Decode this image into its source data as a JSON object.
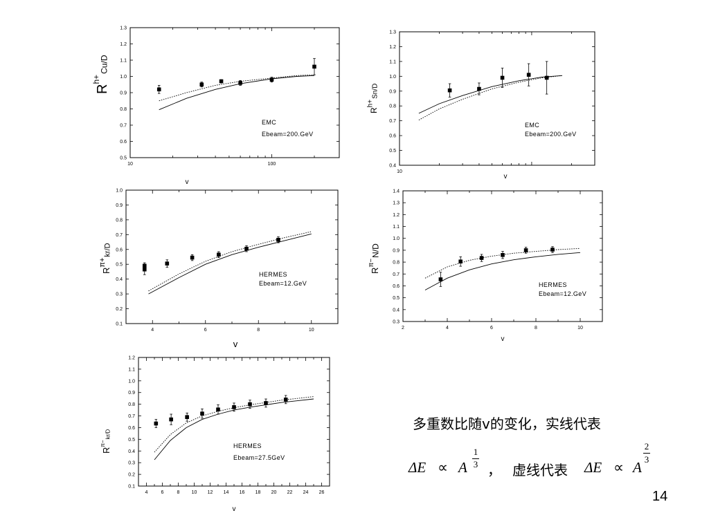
{
  "slide": {
    "caption_line1": "多重数比随v的变化，实线代表",
    "formula1": {
      "lhs": "ΔE",
      "prop": "∝",
      "base": "A",
      "exp_num": "1",
      "exp_den": "3"
    },
    "comma": "，",
    "caption_mid": "虚线代表",
    "formula2": {
      "lhs": "ΔE",
      "prop": "∝",
      "base": "A",
      "exp_num": "2",
      "exp_den": "3"
    },
    "page_number": "14"
  },
  "chart_data": [
    {
      "id": "cu",
      "type": "scatter",
      "ylabel": {
        "main": "R",
        "sup": "h+",
        "sub": "Cu/D"
      },
      "xlabel": "v",
      "xscale": "log",
      "xlim": [
        10,
        300
      ],
      "ylim": [
        0.5,
        1.3
      ],
      "xticks": [
        10,
        100
      ],
      "yticks": [
        0.5,
        0.6,
        0.7,
        0.8,
        0.9,
        1.0,
        1.1,
        1.2,
        1.3
      ],
      "ytick_labels": [
        "0.5",
        "0.6",
        "0.7",
        "0.8",
        "0.9",
        "1.0",
        "1.1",
        "1.2",
        "1.3"
      ],
      "annotation": [
        "EMC",
        "Ebeam=200.GeV"
      ],
      "points": {
        "x": [
          16,
          32,
          44,
          60,
          100,
          200
        ],
        "y": [
          0.92,
          0.95,
          0.97,
          0.96,
          0.98,
          1.06
        ],
        "err": [
          0.025,
          0.015,
          0.01,
          0.015,
          0.015,
          0.05
        ]
      },
      "series": [
        {
          "style": "solid",
          "x": [
            16,
            25,
            40,
            60,
            100,
            150,
            200
          ],
          "y": [
            0.795,
            0.865,
            0.92,
            0.955,
            0.985,
            1.0,
            1.005
          ]
        },
        {
          "style": "dotted",
          "x": [
            16,
            25,
            40,
            60,
            100,
            150,
            200
          ],
          "y": [
            0.85,
            0.9,
            0.945,
            0.97,
            0.99,
            1.005,
            1.01
          ]
        }
      ]
    },
    {
      "id": "sn",
      "type": "scatter",
      "ylabel": {
        "main": "R",
        "sup": "h+",
        "sub": "Sn/D"
      },
      "xlabel": "v",
      "xscale": "log",
      "xlim": [
        10,
        300
      ],
      "ylim": [
        0.4,
        1.3
      ],
      "xticks": [
        10
      ],
      "yticks": [
        0.4,
        0.5,
        0.6,
        0.7,
        0.8,
        0.9,
        1.0,
        1.1,
        1.2,
        1.3
      ],
      "ytick_labels": [
        "0.4",
        "0.5",
        "0.6",
        "0.7",
        "0.8",
        "0.9",
        "1.0",
        "1.1",
        "1.2",
        "1.3"
      ],
      "annotation": [
        "EMC",
        "Ebeam=200.GeV"
      ],
      "points": {
        "x": [
          24,
          40,
          60,
          95,
          130
        ],
        "y": [
          0.905,
          0.915,
          0.99,
          1.01,
          0.99
        ],
        "err": [
          0.045,
          0.04,
          0.065,
          0.075,
          0.11
        ]
      },
      "series": [
        {
          "style": "solid",
          "x": [
            14,
            20,
            30,
            50,
            80,
            120,
            170
          ],
          "y": [
            0.75,
            0.815,
            0.87,
            0.93,
            0.97,
            0.995,
            1.005
          ]
        },
        {
          "style": "dotted",
          "x": [
            14,
            20,
            30,
            50,
            80,
            120,
            170
          ],
          "y": [
            0.705,
            0.78,
            0.845,
            0.915,
            0.96,
            0.99,
            1.005
          ]
        }
      ]
    },
    {
      "id": "kr_pip",
      "type": "scatter",
      "ylabel": {
        "main": "R",
        "sup": "π+",
        "sub": "kr/D"
      },
      "xlabel": "v",
      "xlim": [
        3,
        11
      ],
      "ylim": [
        0.1,
        1.0
      ],
      "xticks": [
        4,
        6,
        8,
        10
      ],
      "yticks": [
        0.1,
        0.2,
        0.3,
        0.4,
        0.5,
        0.6,
        0.7,
        0.8,
        0.9,
        1.0
      ],
      "ytick_labels": [
        "0.1",
        "0.2",
        "0.3",
        "0.4",
        "0.5",
        "0.6",
        "0.7",
        "0.8",
        "0.9",
        "1.0"
      ],
      "annotation": [
        "HERMES",
        "Ebeam=12.GeV"
      ],
      "points": {
        "x": [
          3.7,
          3.7,
          4.55,
          5.5,
          6.5,
          7.55,
          8.75
        ],
        "y": [
          0.49,
          0.465,
          0.505,
          0.545,
          0.565,
          0.605,
          0.665
        ],
        "err": [
          0.02,
          0.035,
          0.025,
          0.02,
          0.02,
          0.02,
          0.02
        ]
      },
      "series": [
        {
          "style": "solid",
          "x": [
            3.85,
            5,
            6,
            7,
            8,
            9,
            10
          ],
          "y": [
            0.3,
            0.41,
            0.5,
            0.565,
            0.615,
            0.66,
            0.705
          ]
        },
        {
          "style": "dotted",
          "x": [
            3.85,
            5,
            6,
            7,
            8,
            9,
            10
          ],
          "y": [
            0.32,
            0.435,
            0.52,
            0.585,
            0.635,
            0.68,
            0.72
          ]
        }
      ]
    },
    {
      "id": "n_pim",
      "type": "scatter",
      "ylabel": {
        "main": "R",
        "sup": "π−",
        "sub": "N/D"
      },
      "xlabel": "v",
      "xlim": [
        2,
        11
      ],
      "ylim": [
        0.3,
        1.4
      ],
      "xticks": [
        2,
        4,
        6,
        8,
        10
      ],
      "yticks": [
        0.3,
        0.4,
        0.5,
        0.6,
        0.7,
        0.8,
        0.9,
        1.0,
        1.1,
        1.2,
        1.3,
        1.4
      ],
      "ytick_labels": [
        "0.3",
        "0.4",
        "0.5",
        "0.6",
        "0.7",
        "0.8",
        "0.9",
        "1.0",
        "1.1",
        "1.2",
        "1.3",
        "1.4"
      ],
      "annotation": [
        "HERMES",
        "Ebeam=12.GeV"
      ],
      "points": {
        "x": [
          3.7,
          4.6,
          5.55,
          6.5,
          7.55,
          8.75
        ],
        "y": [
          0.655,
          0.805,
          0.835,
          0.86,
          0.9,
          0.905
        ],
        "err": [
          0.06,
          0.04,
          0.03,
          0.03,
          0.025,
          0.025
        ]
      },
      "series": [
        {
          "style": "solid",
          "x": [
            3,
            4,
            5,
            6,
            7,
            8,
            9,
            10
          ],
          "y": [
            0.565,
            0.665,
            0.735,
            0.785,
            0.82,
            0.845,
            0.865,
            0.88
          ]
        },
        {
          "style": "dotted",
          "x": [
            3,
            4,
            5,
            6,
            7,
            8,
            9,
            10
          ],
          "y": [
            0.665,
            0.76,
            0.815,
            0.85,
            0.875,
            0.89,
            0.905,
            0.915
          ]
        }
      ]
    },
    {
      "id": "kr_pim",
      "type": "scatter",
      "ylabel": {
        "main": "R",
        "sup": "π−",
        "sub": "kr/D"
      },
      "xlabel": "v",
      "xlim": [
        3,
        27
      ],
      "ylim": [
        0.1,
        1.2
      ],
      "xticks": [
        4,
        6,
        8,
        10,
        12,
        14,
        16,
        18,
        20,
        22,
        24,
        26
      ],
      "yticks": [
        0.1,
        0.2,
        0.3,
        0.4,
        0.5,
        0.6,
        0.7,
        0.8,
        0.9,
        1.0,
        1.1,
        1.2
      ],
      "ytick_labels": [
        "0.1",
        "0.2",
        "0.3",
        "0.4",
        "0.5",
        "0.6",
        "0.7",
        "0.8",
        "0.9",
        "1.0",
        "1.1",
        "1.2"
      ],
      "annotation": [
        "HERMES",
        "Ebeam=27.5GeV"
      ],
      "points": {
        "x": [
          5.2,
          7.1,
          9.1,
          11,
          13,
          15,
          17,
          19,
          21.5
        ],
        "y": [
          0.635,
          0.67,
          0.69,
          0.72,
          0.755,
          0.775,
          0.8,
          0.81,
          0.84
        ],
        "err": [
          0.035,
          0.045,
          0.035,
          0.04,
          0.04,
          0.035,
          0.035,
          0.035,
          0.035
        ]
      },
      "series": [
        {
          "style": "solid",
          "x": [
            5,
            7,
            9,
            11,
            13,
            15,
            17,
            19,
            21,
            23,
            25
          ],
          "y": [
            0.325,
            0.49,
            0.6,
            0.67,
            0.715,
            0.75,
            0.775,
            0.795,
            0.815,
            0.83,
            0.845
          ]
        },
        {
          "style": "dotted",
          "x": [
            5,
            7,
            9,
            11,
            13,
            15,
            17,
            19,
            21,
            23,
            25
          ],
          "y": [
            0.39,
            0.54,
            0.64,
            0.7,
            0.74,
            0.77,
            0.795,
            0.815,
            0.835,
            0.85,
            0.865
          ]
        }
      ]
    }
  ]
}
